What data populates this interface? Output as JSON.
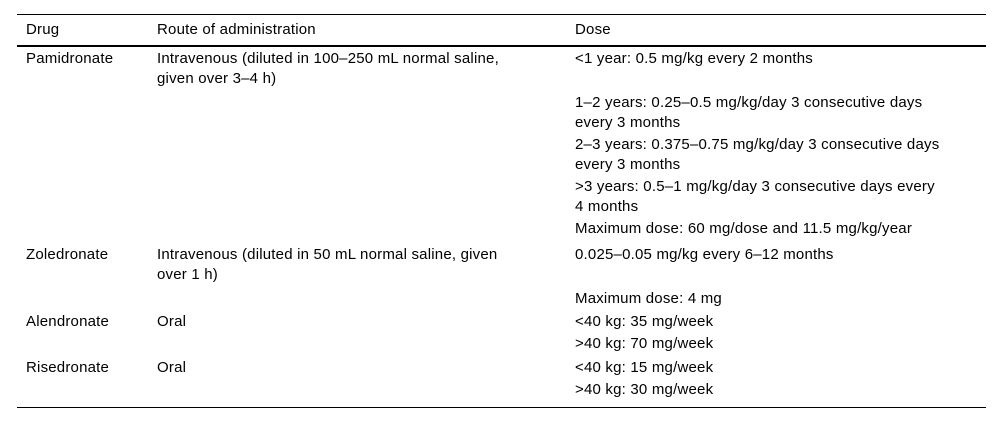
{
  "page": {
    "background_color": "#ffffff",
    "text_color": "#000000",
    "rule_color": "#000000"
  },
  "table": {
    "columns": [
      "Drug",
      "Route of administration",
      "Dose"
    ],
    "rows": [
      {
        "drug": "Pamidronate",
        "route_lines": [
          "Intravenous (diluted in 100–250 mL normal saline,",
          "given over 3–4 h)"
        ],
        "doses": [
          [
            "<1 year: 0.5 mg/kg every 2 months"
          ],
          [
            "1–2 years: 0.25–0.5 mg/kg/day 3 consecutive days",
            "every 3 months"
          ],
          [
            "2–3 years: 0.375–0.75 mg/kg/day 3 consecutive days",
            "every 3 months"
          ],
          [
            ">3 years: 0.5–1 mg/kg/day 3 consecutive days every",
            "4 months"
          ],
          [
            "Maximum dose: 60 mg/dose and 11.5 mg/kg/year"
          ]
        ]
      },
      {
        "drug": "Zoledronate",
        "route_lines": [
          "Intravenous (diluted in 50 mL normal saline, given",
          "over 1 h)"
        ],
        "doses": [
          [
            "0.025–0.05 mg/kg every 6–12 months"
          ],
          [
            "Maximum dose: 4 mg"
          ]
        ]
      },
      {
        "drug": "Alendronate",
        "route_lines": [
          "Oral"
        ],
        "doses": [
          [
            "<40 kg: 35 mg/week"
          ],
          [
            ">40 kg: 70 mg/week"
          ]
        ]
      },
      {
        "drug": "Risedronate",
        "route_lines": [
          "Oral"
        ],
        "doses": [
          [
            "<40 kg: 15 mg/week"
          ],
          [
            ">40 kg: 30 mg/week"
          ]
        ]
      }
    ]
  }
}
